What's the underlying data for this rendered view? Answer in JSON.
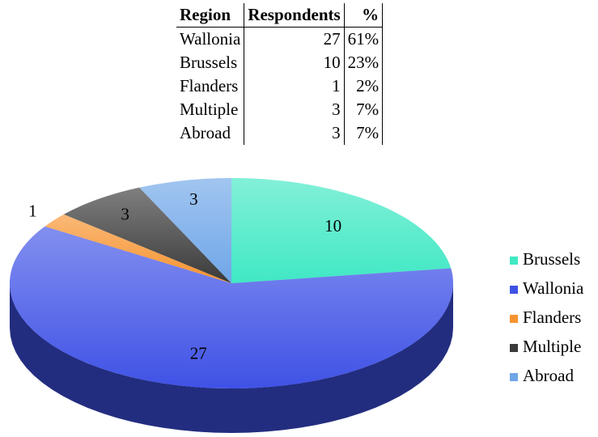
{
  "table": {
    "header": [
      "Region",
      "Respondents",
      "%"
    ],
    "rows": [
      [
        "Wallonia",
        "27",
        "61%"
      ],
      [
        "Brussels",
        "10",
        "23%"
      ],
      [
        "Flanders",
        "1",
        "2%"
      ],
      [
        "Multiple",
        "3",
        "7%"
      ],
      [
        "Abroad",
        "3",
        "7%"
      ]
    ]
  },
  "chart_data": {
    "type": "pie",
    "categories": [
      "Brussels",
      "Wallonia",
      "Flanders",
      "Multiple",
      "Abroad"
    ],
    "values": [
      10,
      27,
      1,
      3,
      3
    ],
    "colors": [
      "#40e8c4",
      "#3f52e6",
      "#f7932f",
      "#3a3a3a",
      "#6fa6e8"
    ],
    "legend": "right"
  }
}
